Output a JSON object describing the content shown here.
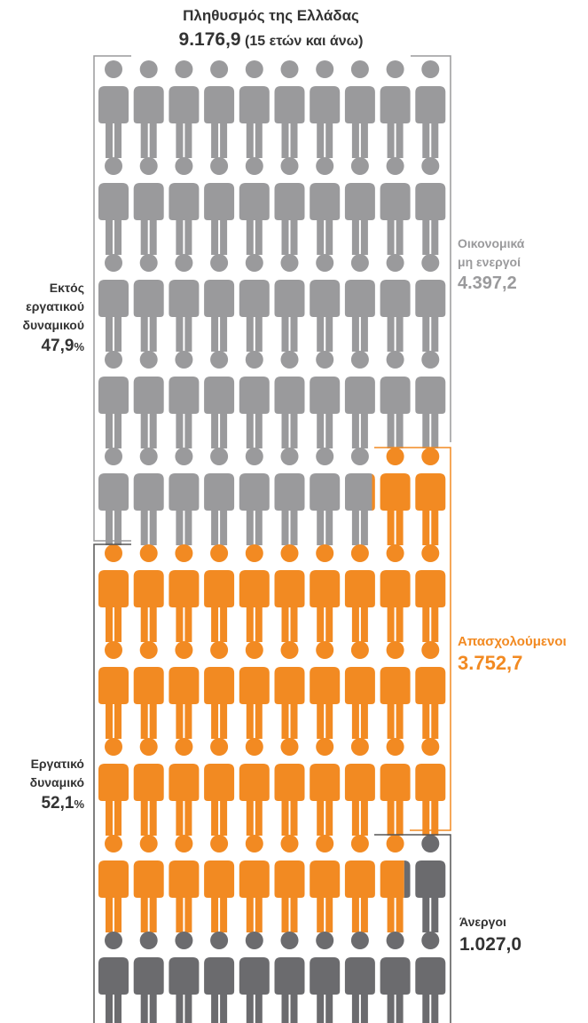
{
  "title": {
    "line1": "Πληθυσμός της Ελλάδας",
    "line2_value": "9.176,9",
    "line2_note": "(15 ετών και άνω)"
  },
  "left_labels": {
    "outside_labor": {
      "line1": "Εκτός",
      "line2": "εργατικού",
      "line3": "δυναμικού",
      "pct": "47,9",
      "pct_sign": "%"
    },
    "labor_force": {
      "line1": "Εργατικό",
      "line2": "δυναμικό",
      "pct": "52,1",
      "pct_sign": "%"
    }
  },
  "right_labels": {
    "inactive": {
      "line1": "Οικονομικά",
      "line2": "μη ενεργοί",
      "value": "4.397,2"
    },
    "employed": {
      "line1": "Απασχολούμενοι",
      "value": "3.752,7"
    },
    "unemployed": {
      "line1": "Άνεργοι",
      "value": "1.027,0"
    }
  },
  "colors": {
    "inactive": "#9a9a9c",
    "employed": "#f28a22",
    "unemployed": "#6b6b6e",
    "text": "#333333",
    "bracket_gray": "#9a9a9c",
    "bracket_orange": "#f28a22",
    "bracket_dark": "#555555"
  },
  "chart_data": {
    "type": "pictogram",
    "title": "Πληθυσμός της Ελλάδας",
    "total": 9176.9,
    "grid": {
      "columns": 10,
      "rows": 10
    },
    "series": [
      {
        "name": "Οικονομικά μη ενεργοί",
        "value": 4397.2,
        "icons": 47.9
      },
      {
        "name": "Απασχολούμενοι",
        "value": 3752.7,
        "icons": 40.9
      },
      {
        "name": "Άνεργοι",
        "value": 1027.0,
        "icons": 11.2
      }
    ],
    "groups": [
      {
        "name": "Εκτός εργατικού δυναμικού",
        "pct": 47.9
      },
      {
        "name": "Εργατικό δυναμικό",
        "pct": 52.1
      }
    ]
  }
}
